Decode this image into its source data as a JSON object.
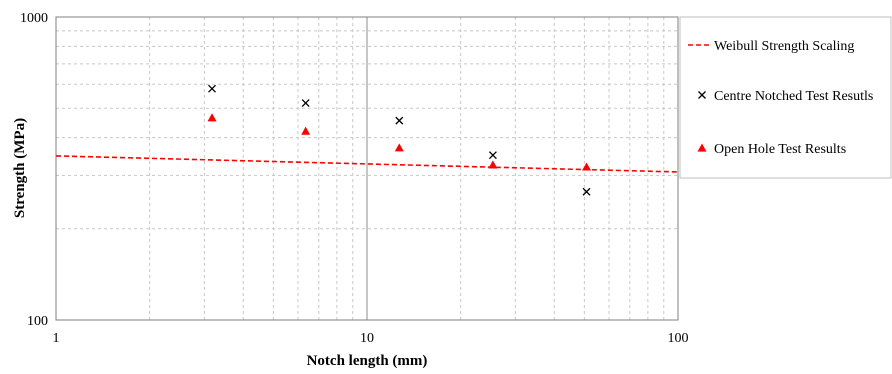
{
  "chart_data": {
    "type": "scatter",
    "title": "",
    "xlabel": "Notch length (mm)",
    "ylabel": "Strength (MPa)",
    "xscale": "log",
    "yscale": "log",
    "xlim": [
      1,
      100
    ],
    "ylim": [
      100,
      1000
    ],
    "x_ticks": [
      "1",
      "10",
      "100"
    ],
    "y_ticks": [
      "100",
      "1000"
    ],
    "grid": true,
    "legend_position": "right",
    "series": [
      {
        "name": "Weibull Strength Scaling",
        "kind": "line",
        "style": "dashed",
        "color": "#ff0000",
        "x": [
          1,
          100
        ],
        "y": [
          348,
          308
        ]
      },
      {
        "name": "Centre Notched Test Resutls",
        "kind": "scatter",
        "marker": "x",
        "color": "#000000",
        "x": [
          3.175,
          6.35,
          12.7,
          25.4,
          50.8
        ],
        "y": [
          580,
          520,
          455,
          350,
          265
        ]
      },
      {
        "name": "Open Hole Test Results",
        "kind": "scatter",
        "marker": "triangle",
        "color": "#ff0000",
        "x": [
          3.175,
          6.35,
          12.7,
          25.4,
          50.8
        ],
        "y": [
          465,
          420,
          370,
          325,
          320
        ]
      }
    ]
  }
}
